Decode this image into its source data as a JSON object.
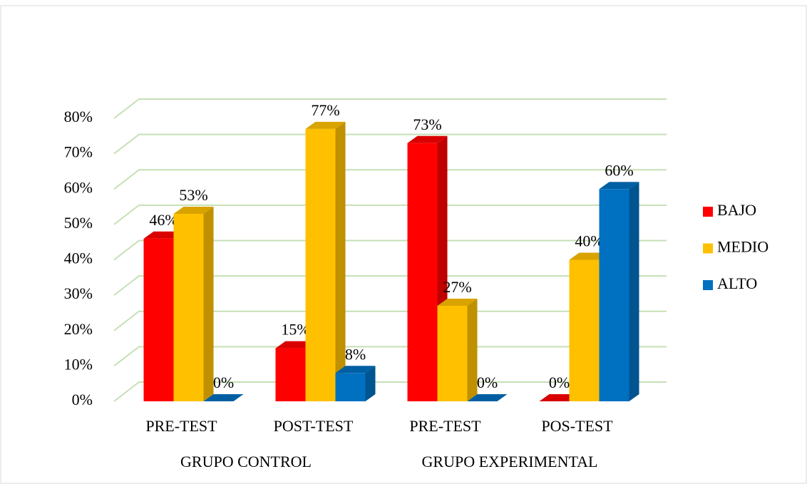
{
  "chart_data": {
    "type": "bar3d",
    "categories": [
      "PRE-TEST",
      "POST-TEST",
      "PRE-TEST",
      "POS-TEST"
    ],
    "groups": [
      "GRUPO CONTROL",
      "GRUPO EXPERIMENTAL"
    ],
    "series": [
      {
        "name": "BAJO",
        "color": "#ff0000",
        "values": [
          46,
          15,
          73,
          0
        ],
        "value_labels": [
          "46%",
          "15%",
          "73%",
          "0%"
        ]
      },
      {
        "name": "MEDIO",
        "color": "#ffc000",
        "values": [
          53,
          77,
          27,
          40
        ],
        "value_labels": [
          "53%",
          "77%",
          "27%",
          "40%"
        ]
      },
      {
        "name": "ALTO",
        "color": "#0070c0",
        "values": [
          0,
          8,
          0,
          60
        ],
        "value_labels": [
          "0%",
          "8%",
          "0%",
          "60%"
        ]
      }
    ],
    "ylim": [
      0,
      80
    ],
    "yticks": [
      {
        "value": 0,
        "label": "0%"
      },
      {
        "value": 10,
        "label": "10%"
      },
      {
        "value": 20,
        "label": "20%"
      },
      {
        "value": 30,
        "label": "30%"
      },
      {
        "value": 40,
        "label": "40%"
      },
      {
        "value": 50,
        "label": "50%"
      },
      {
        "value": 60,
        "label": "60%"
      },
      {
        "value": 70,
        "label": "70%"
      },
      {
        "value": 80,
        "label": "80%"
      }
    ],
    "grid": true,
    "legend": "right"
  }
}
